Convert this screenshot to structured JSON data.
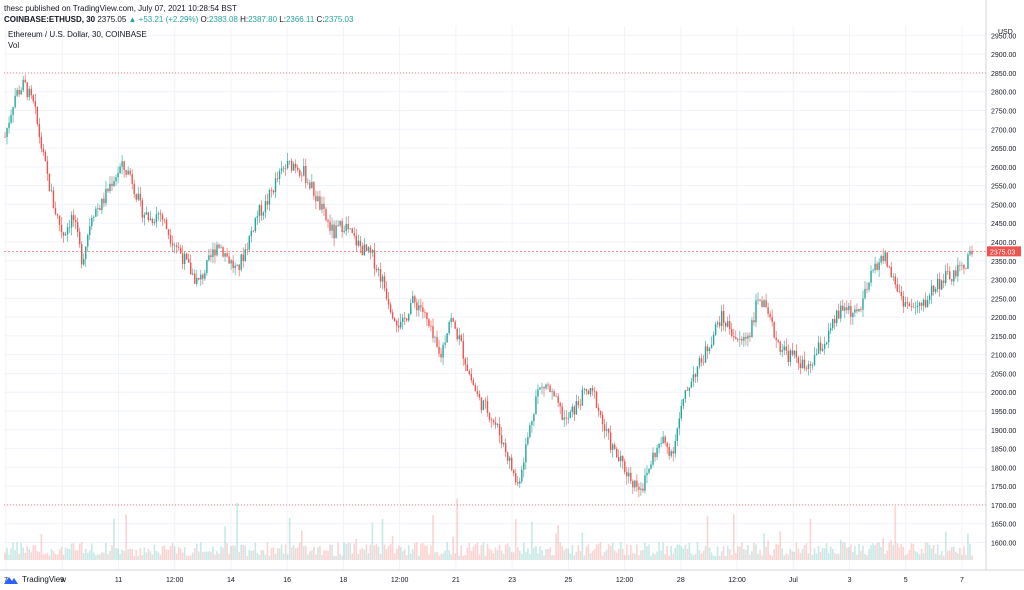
{
  "header": {
    "publisher_line": "thesc published on TradingView.com, July 07, 2021 10:28:54 BST",
    "symbol": "COINBASE:ETHUSD, 30",
    "last": "2375.05",
    "change": "▲ +53.21 (+2.29%)",
    "o_label": "O:",
    "o_value": "2383.08",
    "h_label": "H:",
    "h_value": "2387.80",
    "l_label": "L:",
    "l_value": "2366.11",
    "c_label": "C:",
    "c_value": "2375.03"
  },
  "legend": {
    "title": "Ethereum / U.S. Dollar, 30, COINBASE",
    "volume": "Vol"
  },
  "footer": {
    "brand": "TradingView"
  },
  "colors": {
    "up": "#26a69a",
    "down": "#ef5350",
    "grid": "#f0f3fa",
    "dashed_line": "#e57373",
    "price_tag": "#ef5350"
  },
  "chart_data": {
    "type": "candlestick",
    "title": "Ethereum / U.S. Dollar, 30, COINBASE",
    "currency_label": "USD",
    "ylim": [
      1580,
      2975
    ],
    "y_ticks": [
      1600,
      1650,
      1700,
      1750,
      1800,
      1850,
      1900,
      1950,
      2000,
      2050,
      2100,
      2150,
      2200,
      2250,
      2300,
      2350,
      2400,
      2450,
      2500,
      2550,
      2600,
      2650,
      2700,
      2750,
      2800,
      2850,
      2900,
      2950
    ],
    "x_ticks": [
      "7",
      "9",
      "11",
      "12:00",
      "14",
      "16",
      "18",
      "12:00",
      "21",
      "23",
      "25",
      "12:00",
      "28",
      "12:00",
      "Jul",
      "3",
      "5",
      "7"
    ],
    "horizontal_lines": [
      2850,
      1700
    ],
    "current_price": 2375.03,
    "current_price_label": "2375.03",
    "price_path": [
      [
        0,
        2680
      ],
      [
        1,
        2790
      ],
      [
        2,
        2820
      ],
      [
        3,
        2760
      ],
      [
        4,
        2620
      ],
      [
        5,
        2500
      ],
      [
        6,
        2420
      ],
      [
        7,
        2470
      ],
      [
        8,
        2350
      ],
      [
        9,
        2480
      ],
      [
        10,
        2500
      ],
      [
        11,
        2560
      ],
      [
        12,
        2600
      ],
      [
        13,
        2580
      ],
      [
        14,
        2490
      ],
      [
        15,
        2460
      ],
      [
        16,
        2480
      ],
      [
        17,
        2420
      ],
      [
        18,
        2380
      ],
      [
        19,
        2330
      ],
      [
        20,
        2290
      ],
      [
        21,
        2340
      ],
      [
        22,
        2400
      ],
      [
        23,
        2360
      ],
      [
        24,
        2320
      ],
      [
        25,
        2390
      ],
      [
        26,
        2470
      ],
      [
        27,
        2500
      ],
      [
        28,
        2560
      ],
      [
        29,
        2600
      ],
      [
        30,
        2610
      ],
      [
        31,
        2580
      ],
      [
        32,
        2530
      ],
      [
        33,
        2470
      ],
      [
        34,
        2420
      ],
      [
        35,
        2450
      ],
      [
        36,
        2410
      ],
      [
        37,
        2380
      ],
      [
        38,
        2360
      ],
      [
        39,
        2300
      ],
      [
        40,
        2220
      ],
      [
        41,
        2170
      ],
      [
        42,
        2240
      ],
      [
        43,
        2230
      ],
      [
        44,
        2160
      ],
      [
        45,
        2090
      ],
      [
        46,
        2200
      ],
      [
        47,
        2140
      ],
      [
        48,
        2050
      ],
      [
        49,
        1980
      ],
      [
        50,
        1950
      ],
      [
        51,
        1900
      ],
      [
        52,
        1830
      ],
      [
        53,
        1750
      ],
      [
        54,
        1870
      ],
      [
        55,
        2000
      ],
      [
        56,
        2020
      ],
      [
        57,
        1970
      ],
      [
        58,
        1920
      ],
      [
        59,
        1960
      ],
      [
        60,
        2000
      ],
      [
        61,
        1990
      ],
      [
        62,
        1900
      ],
      [
        63,
        1840
      ],
      [
        64,
        1800
      ],
      [
        65,
        1760
      ],
      [
        66,
        1750
      ],
      [
        67,
        1830
      ],
      [
        68,
        1870
      ],
      [
        69,
        1840
      ],
      [
        70,
        1960
      ],
      [
        71,
        2040
      ],
      [
        72,
        2080
      ],
      [
        73,
        2140
      ],
      [
        74,
        2200
      ],
      [
        75,
        2170
      ],
      [
        76,
        2130
      ],
      [
        77,
        2160
      ],
      [
        78,
        2260
      ],
      [
        79,
        2190
      ],
      [
        80,
        2130
      ],
      [
        81,
        2100
      ],
      [
        82,
        2090
      ],
      [
        83,
        2050
      ],
      [
        84,
        2110
      ],
      [
        85,
        2140
      ],
      [
        86,
        2200
      ],
      [
        87,
        2230
      ],
      [
        88,
        2200
      ],
      [
        89,
        2260
      ],
      [
        90,
        2340
      ],
      [
        91,
        2360
      ],
      [
        92,
        2290
      ],
      [
        93,
        2240
      ],
      [
        94,
        2220
      ],
      [
        95,
        2230
      ],
      [
        96,
        2280
      ],
      [
        97,
        2300
      ],
      [
        98,
        2310
      ],
      [
        99,
        2330
      ],
      [
        100,
        2375
      ]
    ]
  }
}
